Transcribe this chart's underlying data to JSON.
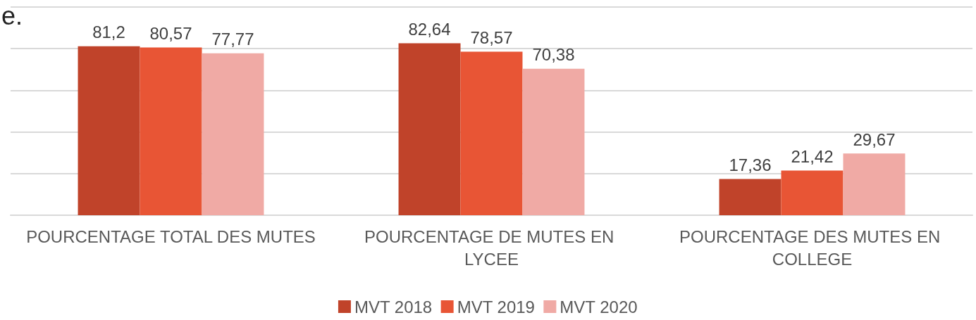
{
  "chart_data": {
    "type": "bar",
    "annotations": [
      "e."
    ],
    "categories": [
      "POURCENTAGE TOTAL DES MUTES",
      "POURCENTAGE DE MUTES EN LYCEE",
      "POURCENTAGE DES MUTES EN COLLEGE"
    ],
    "series": [
      {
        "name": "MVT 2018",
        "color": "#c0432a",
        "values": [
          81.2,
          82.64,
          17.36
        ],
        "value_labels": [
          "81,2",
          "82,64",
          "17,36"
        ]
      },
      {
        "name": "MVT 2019",
        "color": "#e85535",
        "values": [
          80.57,
          78.57,
          21.42
        ],
        "value_labels": [
          "80,57",
          "78,57",
          "21,42"
        ]
      },
      {
        "name": "MVT 2020",
        "color": "#f0aaa5",
        "values": [
          77.77,
          70.38,
          29.67
        ],
        "value_labels": [
          "77,77",
          "70,38",
          "29,67"
        ]
      }
    ],
    "ylim": [
      0,
      100
    ],
    "yticks": [
      {
        "value": 0,
        "label": null
      },
      {
        "value": 20,
        "label": null
      },
      {
        "value": 40,
        "label": null
      },
      {
        "value": 60,
        "label": null
      },
      {
        "value": 80,
        "label": null
      },
      {
        "value": 100,
        "label": null
      }
    ],
    "tick_labels": "x",
    "grid": "y",
    "legend": "bottom"
  }
}
